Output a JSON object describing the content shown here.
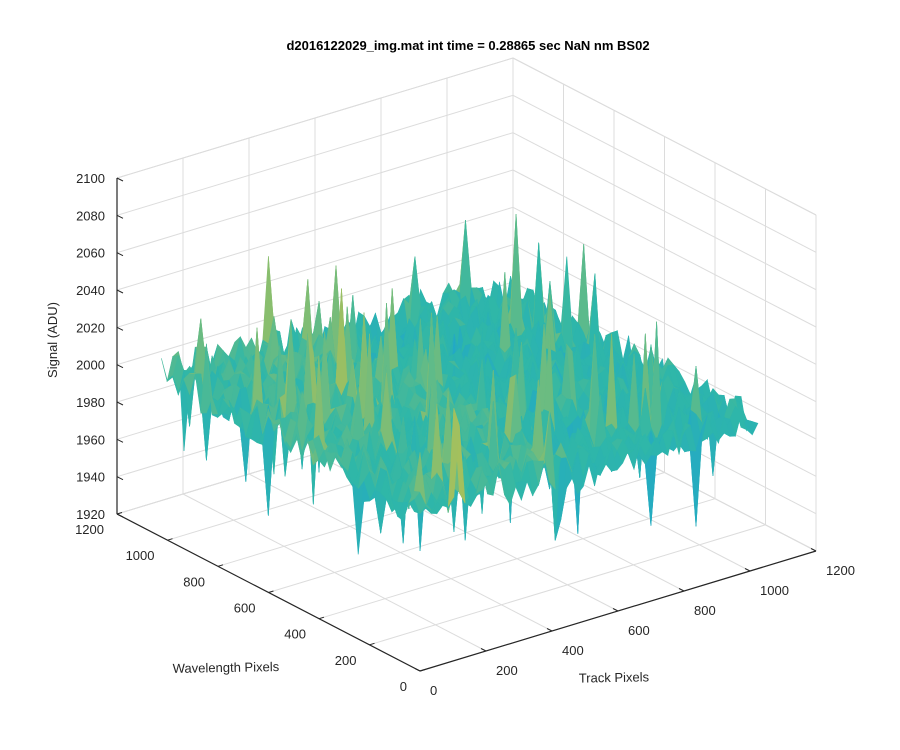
{
  "chart_data": {
    "type": "surface",
    "title": "d2016122029_img.mat int time = 0.28865 sec  NaN nm BS02",
    "xlabel": "Track Pixels",
    "ylabel": "Wavelength Pixels",
    "zlabel": "Signal (ADU)",
    "xlim": [
      0,
      1200
    ],
    "ylim": [
      0,
      1200
    ],
    "zlim": [
      1920,
      2100
    ],
    "x_ticks": [
      "0",
      "200",
      "400",
      "600",
      "800",
      "1000",
      "1200"
    ],
    "y_ticks": [
      "0",
      "200",
      "400",
      "600",
      "800",
      "1000",
      "1200"
    ],
    "z_ticks": [
      "1920",
      "1940",
      "1960",
      "1980",
      "2000",
      "2020",
      "2040",
      "2060",
      "2080",
      "2100"
    ],
    "grid": true,
    "colormap": "parula",
    "surface_x_range": [
      0,
      1024
    ],
    "surface_y_range": [
      0,
      1024
    ],
    "baseline_signal": 2000,
    "signal_range_approx": [
      1925,
      2085
    ],
    "elevated_band_track_pixels": [
      0,
      450
    ],
    "colors": {
      "low": "#1a9fdc",
      "mid": "#2fb7a8",
      "high": "#e8c531",
      "grid": "#dcdcdc",
      "axis": "#262626"
    }
  }
}
